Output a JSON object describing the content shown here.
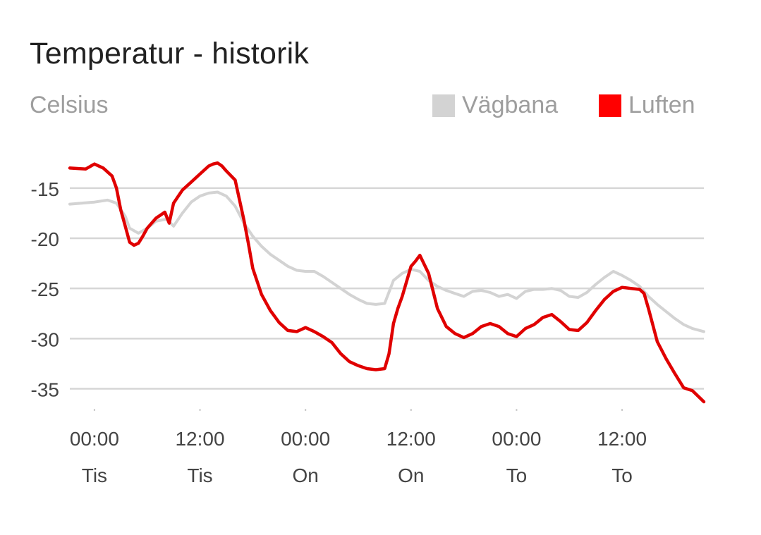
{
  "title": "Temperatur - historik",
  "unit_label": "Celsius",
  "colors": {
    "roadway": "#d3d3d3",
    "air": "#e00000",
    "legend_air": "#ff0000",
    "grid": "#d6d6d6",
    "axis_text": "#444444"
  },
  "chart_data": {
    "type": "line",
    "title": "Temperatur - historik",
    "ylabel": "Celsius",
    "xlabel": "",
    "x_unit": "hours",
    "x_ticks": [
      {
        "x": 0,
        "time": "00:00",
        "day": "Tis"
      },
      {
        "x": 12,
        "time": "12:00",
        "day": "Tis"
      },
      {
        "x": 24,
        "time": "00:00",
        "day": "On"
      },
      {
        "x": 36,
        "time": "12:00",
        "day": "On"
      },
      {
        "x": 48,
        "time": "00:00",
        "day": "To"
      },
      {
        "x": 60,
        "time": "12:00",
        "day": "To"
      }
    ],
    "y_ticks": [
      -15,
      -20,
      -25,
      -30,
      -35
    ],
    "xlim": [
      -2.8,
      69.3
    ],
    "ylim": [
      -36.3,
      -11.5
    ],
    "grid": true,
    "legend_position": "top-right",
    "series": [
      {
        "name": "Vägbana",
        "color": "#d3d3d3",
        "x": [
          -2.8,
          0,
          1.5,
          2.5,
          3.5,
          4,
          5,
          6,
          7,
          8.2,
          9,
          10,
          11,
          12,
          13,
          14,
          15,
          16,
          17,
          18,
          19,
          20,
          21,
          22,
          23,
          24,
          25,
          26,
          27,
          28,
          29,
          30,
          31,
          32,
          33,
          34,
          35,
          36,
          37,
          38,
          39,
          40,
          41,
          42,
          43,
          44,
          45,
          46,
          47,
          48,
          49,
          50,
          51,
          52,
          53,
          54,
          55,
          56,
          57,
          58,
          59,
          60,
          61,
          62,
          63,
          64,
          65,
          66,
          67,
          68,
          69.3
        ],
        "values": [
          -16.6,
          -16.4,
          -16.2,
          -16.5,
          -17.8,
          -19.0,
          -19.5,
          -19.0,
          -18.3,
          -18.1,
          -18.8,
          -17.5,
          -16.4,
          -15.8,
          -15.5,
          -15.4,
          -15.8,
          -16.8,
          -18.5,
          -19.8,
          -20.8,
          -21.6,
          -22.2,
          -22.8,
          -23.2,
          -23.3,
          -23.3,
          -23.8,
          -24.4,
          -25.0,
          -25.6,
          -26.1,
          -26.5,
          -26.6,
          -26.5,
          -24.2,
          -23.5,
          -23.1,
          -23.3,
          -24.2,
          -24.8,
          -25.2,
          -25.5,
          -25.8,
          -25.3,
          -25.2,
          -25.4,
          -25.8,
          -25.6,
          -26.0,
          -25.3,
          -25.1,
          -25.1,
          -25.0,
          -25.2,
          -25.8,
          -25.9,
          -25.4,
          -24.6,
          -23.9,
          -23.3,
          -23.7,
          -24.2,
          -24.8,
          -25.8,
          -26.6,
          -27.3,
          -28.0,
          -28.6,
          -29.0,
          -29.3
        ]
      },
      {
        "name": "Luften",
        "color": "#e00000",
        "x": [
          -2.8,
          -1,
          0,
          1,
          2,
          2.5,
          3,
          3.5,
          4,
          4.5,
          5,
          5.5,
          6,
          7,
          8,
          8.5,
          9,
          10,
          11,
          12,
          13,
          13.5,
          14,
          14.5,
          15,
          16,
          17,
          17.5,
          18,
          19,
          20,
          21,
          22,
          23,
          24,
          25,
          26,
          27,
          28,
          29,
          30,
          31,
          32,
          33,
          33.5,
          34,
          34.5,
          35,
          36,
          36.5,
          37,
          38,
          39,
          40,
          41,
          42,
          43,
          44,
          45,
          46,
          47,
          48,
          49,
          50,
          51,
          52,
          53,
          54,
          55,
          56,
          57,
          58,
          59,
          60,
          61,
          62,
          62.5,
          63,
          64,
          65,
          66,
          67,
          68,
          69.3
        ],
        "values": [
          -13.0,
          -13.1,
          -12.6,
          -13.0,
          -13.8,
          -15.0,
          -17.2,
          -18.8,
          -20.4,
          -20.7,
          -20.5,
          -19.8,
          -19.0,
          -18.0,
          -17.4,
          -18.5,
          -16.5,
          -15.2,
          -14.4,
          -13.6,
          -12.8,
          -12.6,
          -12.5,
          -12.8,
          -13.3,
          -14.2,
          -18.2,
          -20.5,
          -23.0,
          -25.6,
          -27.2,
          -28.4,
          -29.2,
          -29.3,
          -28.9,
          -29.3,
          -29.8,
          -30.4,
          -31.5,
          -32.3,
          -32.7,
          -33.0,
          -33.1,
          -33.0,
          -31.5,
          -28.5,
          -27.0,
          -25.8,
          -22.8,
          -22.3,
          -21.7,
          -23.5,
          -27.0,
          -28.8,
          -29.5,
          -29.9,
          -29.5,
          -28.8,
          -28.5,
          -28.8,
          -29.5,
          -29.8,
          -29.0,
          -28.6,
          -27.9,
          -27.6,
          -28.3,
          -29.1,
          -29.2,
          -28.4,
          -27.2,
          -26.1,
          -25.3,
          -24.9,
          -25.0,
          -25.1,
          -25.5,
          -27.0,
          -30.3,
          -32.0,
          -33.5,
          -34.9,
          -35.2,
          -36.3
        ]
      }
    ]
  }
}
